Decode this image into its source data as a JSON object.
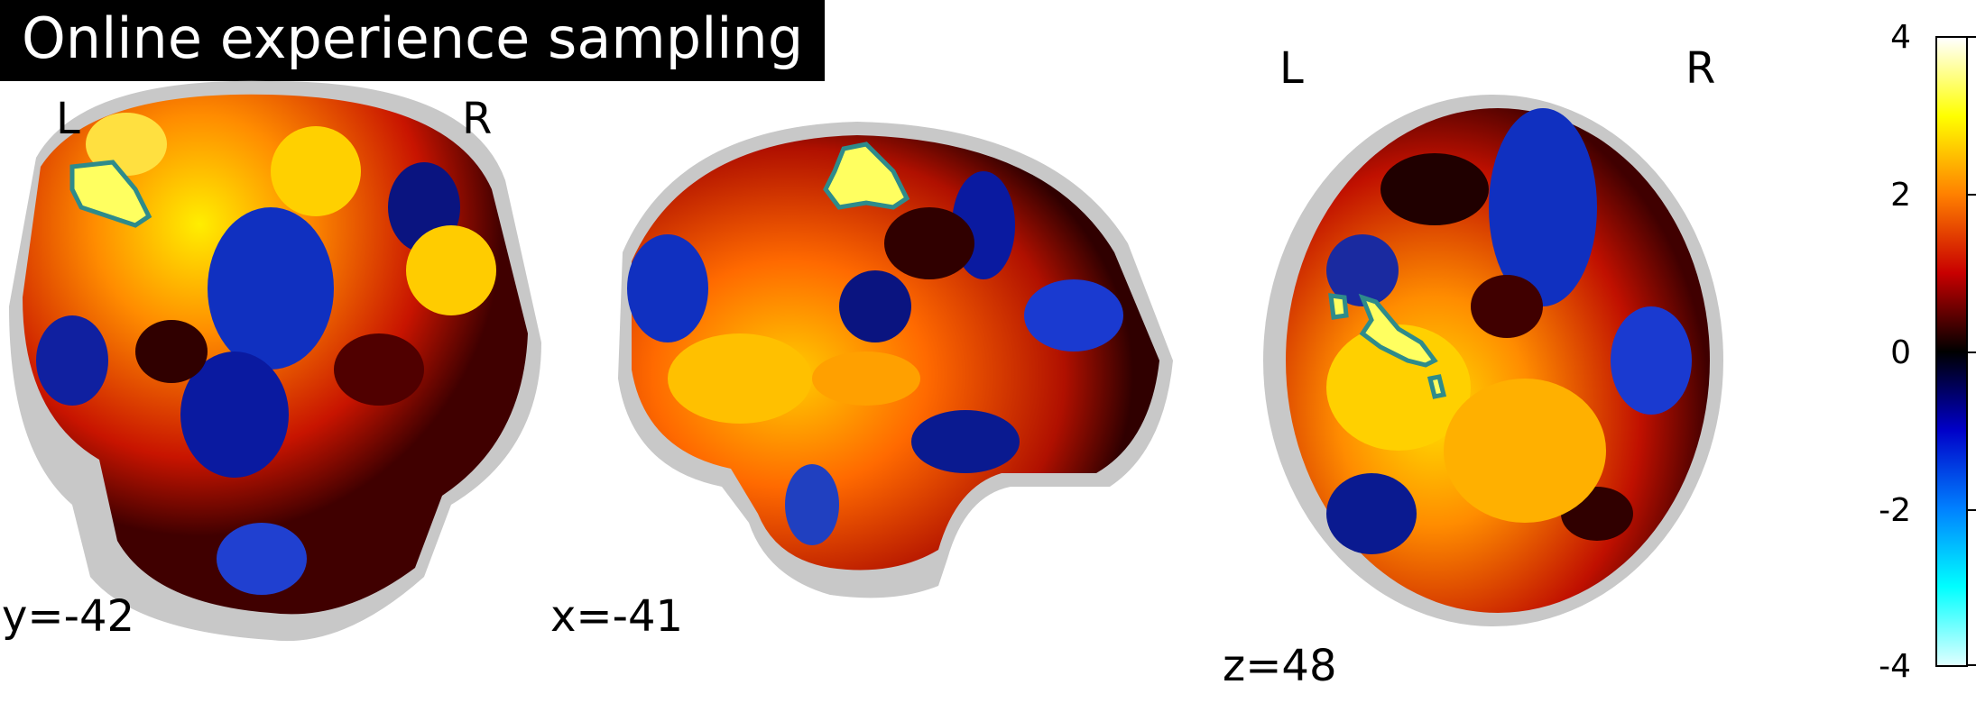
{
  "title": "Online experience sampling",
  "views": {
    "coronal": {
      "coord_label": "y=-42",
      "left_marker": "L",
      "right_marker": "R"
    },
    "sagittal": {
      "coord_label": "x=-41"
    },
    "axial": {
      "coord_label": "z=48",
      "left_marker": "L",
      "right_marker": "R"
    }
  },
  "colorbar": {
    "colormap": "cold_hot",
    "range": [
      -4,
      4
    ],
    "ticks": [
      "4",
      "2",
      "0",
      "-2",
      "-4"
    ],
    "colors": [
      "#ffffff",
      "#ffff00",
      "#ff8000",
      "#c80000",
      "#000000",
      "#0000c8",
      "#0080ff",
      "#00ffff",
      "#e0ffff"
    ]
  },
  "colors": {
    "brain_bg": "#c8c8c8",
    "contour": "#2e8b8b",
    "title_bg": "#000000",
    "title_fg": "#ffffff"
  }
}
